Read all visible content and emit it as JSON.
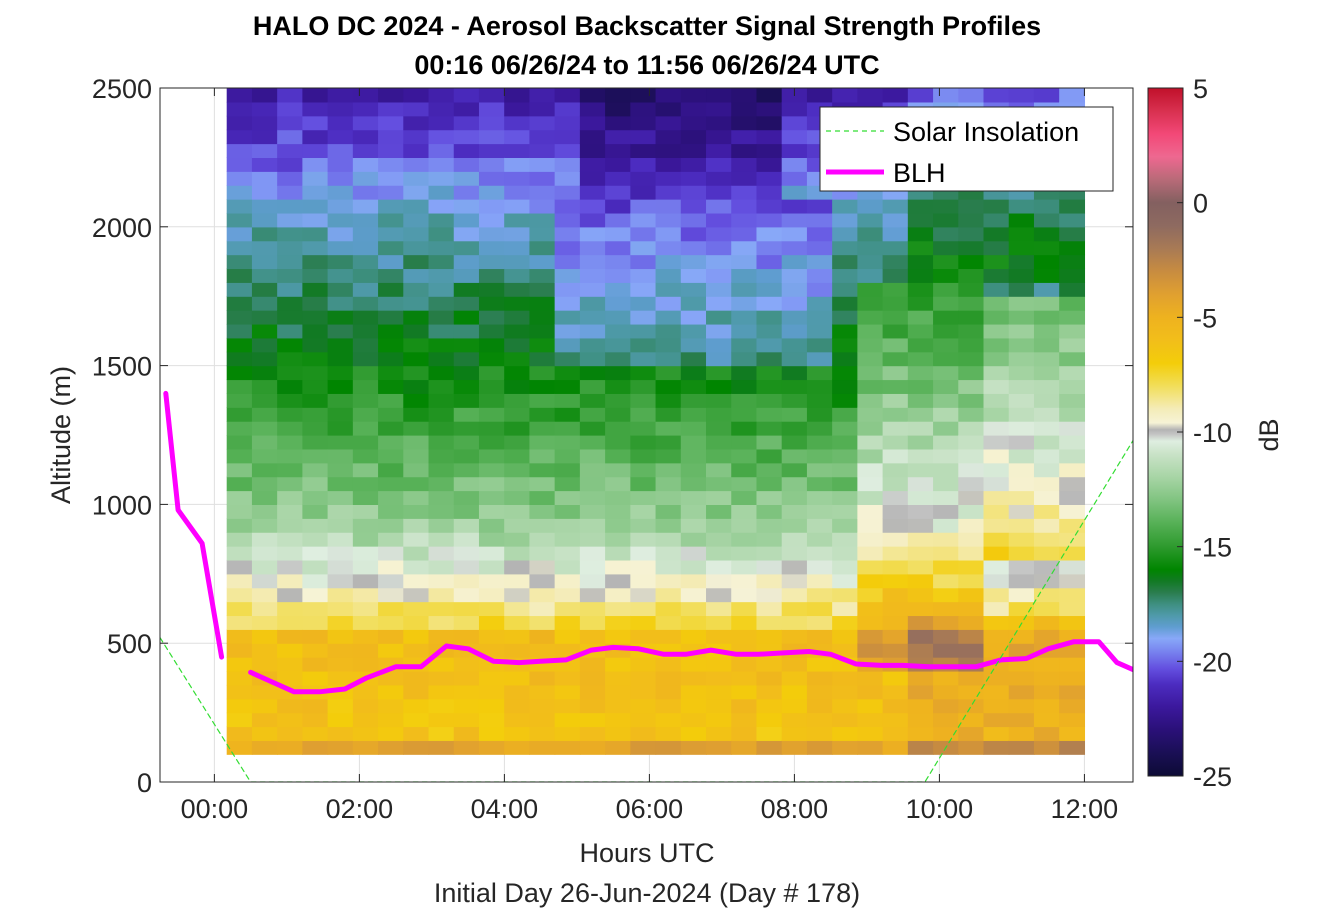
{
  "chart_data": {
    "type": "heatmap",
    "title": "HALO DC 2024 - Aerosol Backscatter Signal Strength Profiles",
    "subtitle": "00:16 06/26/24 to 11:56 06/26/24  UTC",
    "xlabel": "Hours UTC",
    "footer": "Initial Day 26-Jun-2024 (Day # 178)",
    "ylabel": "Altitude (m)",
    "xlim": [
      -0.75,
      12.67
    ],
    "ylim": [
      0,
      2500
    ],
    "x_ticks": [
      0,
      2,
      4,
      6,
      8,
      10,
      12
    ],
    "x_tick_labels": [
      "00:00",
      "02:00",
      "04:00",
      "06:00",
      "08:00",
      "10:00",
      "12:00"
    ],
    "y_ticks": [
      0,
      500,
      1000,
      1500,
      2000,
      2500
    ],
    "y_tick_labels": [
      "0",
      "500",
      "1000",
      "1500",
      "2000",
      "2500"
    ],
    "grid": true,
    "heatmap_extent": {
      "x": [
        0.17,
        12.0
      ],
      "y": [
        100,
        2500
      ]
    },
    "heatmap_columns": 34,
    "heatmap_rows": 48,
    "colorbar": {
      "label": "dB",
      "range": [
        -25,
        5
      ],
      "ticks": [
        5,
        0,
        -5,
        -10,
        -15,
        -20,
        -25
      ],
      "tick_labels": [
        "5",
        "0",
        "-5",
        "-10",
        "-15",
        "-20",
        "-25"
      ]
    },
    "legend": {
      "position": "top-right",
      "entries": [
        {
          "name": "Solar Insolation",
          "color": "#33dd33",
          "style": "dashed"
        },
        {
          "name": "BLH",
          "color": "#ff00ff",
          "style": "solid"
        }
      ]
    },
    "series": [
      {
        "name": "BLH",
        "color": "#ff00ff",
        "segments": [
          {
            "x": [
              -0.67,
              -0.5,
              -0.17,
              0.1
            ],
            "y": [
              1400,
              980,
              860,
              450
            ]
          },
          {
            "x": [
              0.5,
              0.8,
              1.1,
              1.45,
              1.8,
              2.1,
              2.5,
              2.85,
              3.2,
              3.5,
              3.85,
              4.2,
              4.5,
              4.85,
              5.2,
              5.5,
              5.85,
              6.2,
              6.5,
              6.85,
              7.2,
              7.5,
              7.85,
              8.2,
              8.5,
              8.85,
              9.2,
              9.5,
              9.85,
              10.2,
              10.5,
              10.85,
              11.2,
              11.5,
              11.85,
              12.2,
              12.45,
              12.67
            ],
            "y": [
              395,
              360,
              325,
              325,
              335,
              375,
              415,
              415,
              490,
              480,
              435,
              430,
              435,
              440,
              475,
              485,
              480,
              460,
              460,
              475,
              460,
              460,
              465,
              470,
              460,
              425,
              420,
              420,
              415,
              415,
              415,
              440,
              445,
              480,
              505,
              505,
              430,
              405
            ]
          }
        ]
      },
      {
        "name": "Solar Insolation",
        "color": "#33dd33",
        "segments": [
          {
            "x": [
              -0.75,
              0.5,
              9.8,
              12.67
            ],
            "y": [
              520,
              0,
              0,
              1230
            ]
          }
        ]
      }
    ]
  }
}
